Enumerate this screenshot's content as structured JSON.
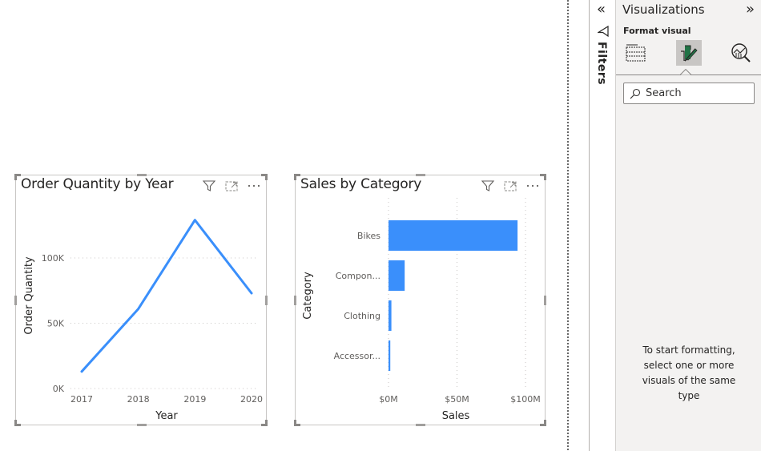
{
  "canvas": {
    "visuals": [
      {
        "id": "line",
        "title": "Order Quantity by Year",
        "header_icons": [
          "filter-icon",
          "focus-mode-icon",
          "more-options-icon"
        ]
      },
      {
        "id": "bar",
        "title": "Sales by Category",
        "header_icons": [
          "filter-icon",
          "focus-mode-icon",
          "more-options-icon"
        ]
      }
    ]
  },
  "chart_data": [
    {
      "type": "line",
      "title": "Order Quantity by Year",
      "xlabel": "Year",
      "ylabel": "Order Quantity",
      "x": [
        "2017",
        "2018",
        "2019",
        "2020"
      ],
      "values": [
        13000,
        61000,
        129000,
        73000
      ],
      "yticks": [
        "0K",
        "50K",
        "100K"
      ],
      "ylim": [
        0,
        130000
      ],
      "grid": true,
      "color": "#3a8ffb"
    },
    {
      "type": "bar",
      "orientation": "horizontal",
      "title": "Sales by Category",
      "xlabel": "Sales",
      "ylabel": "Category",
      "categories": [
        "Bikes",
        "Compon...",
        "Clothing",
        "Accessor..."
      ],
      "values": [
        94.2,
        11.8,
        2.1,
        1.3
      ],
      "units": "$M",
      "xticks": [
        "$0M",
        "$50M",
        "$100M"
      ],
      "xlim": [
        0,
        100
      ],
      "grid": true,
      "color": "#3a8ffb"
    }
  ],
  "filters_pane": {
    "label": "Filters",
    "collapse_glyph": "«"
  },
  "viz_pane": {
    "title": "Visualizations",
    "expand_glyph": "»",
    "subtitle": "Format visual",
    "tabs": [
      {
        "name": "build-visual",
        "active": false
      },
      {
        "name": "format-visual",
        "active": true
      },
      {
        "name": "analytics",
        "active": false
      }
    ],
    "search_placeholder": "Search",
    "empty_message": "To start formatting, select one or more visuals of the same type"
  }
}
